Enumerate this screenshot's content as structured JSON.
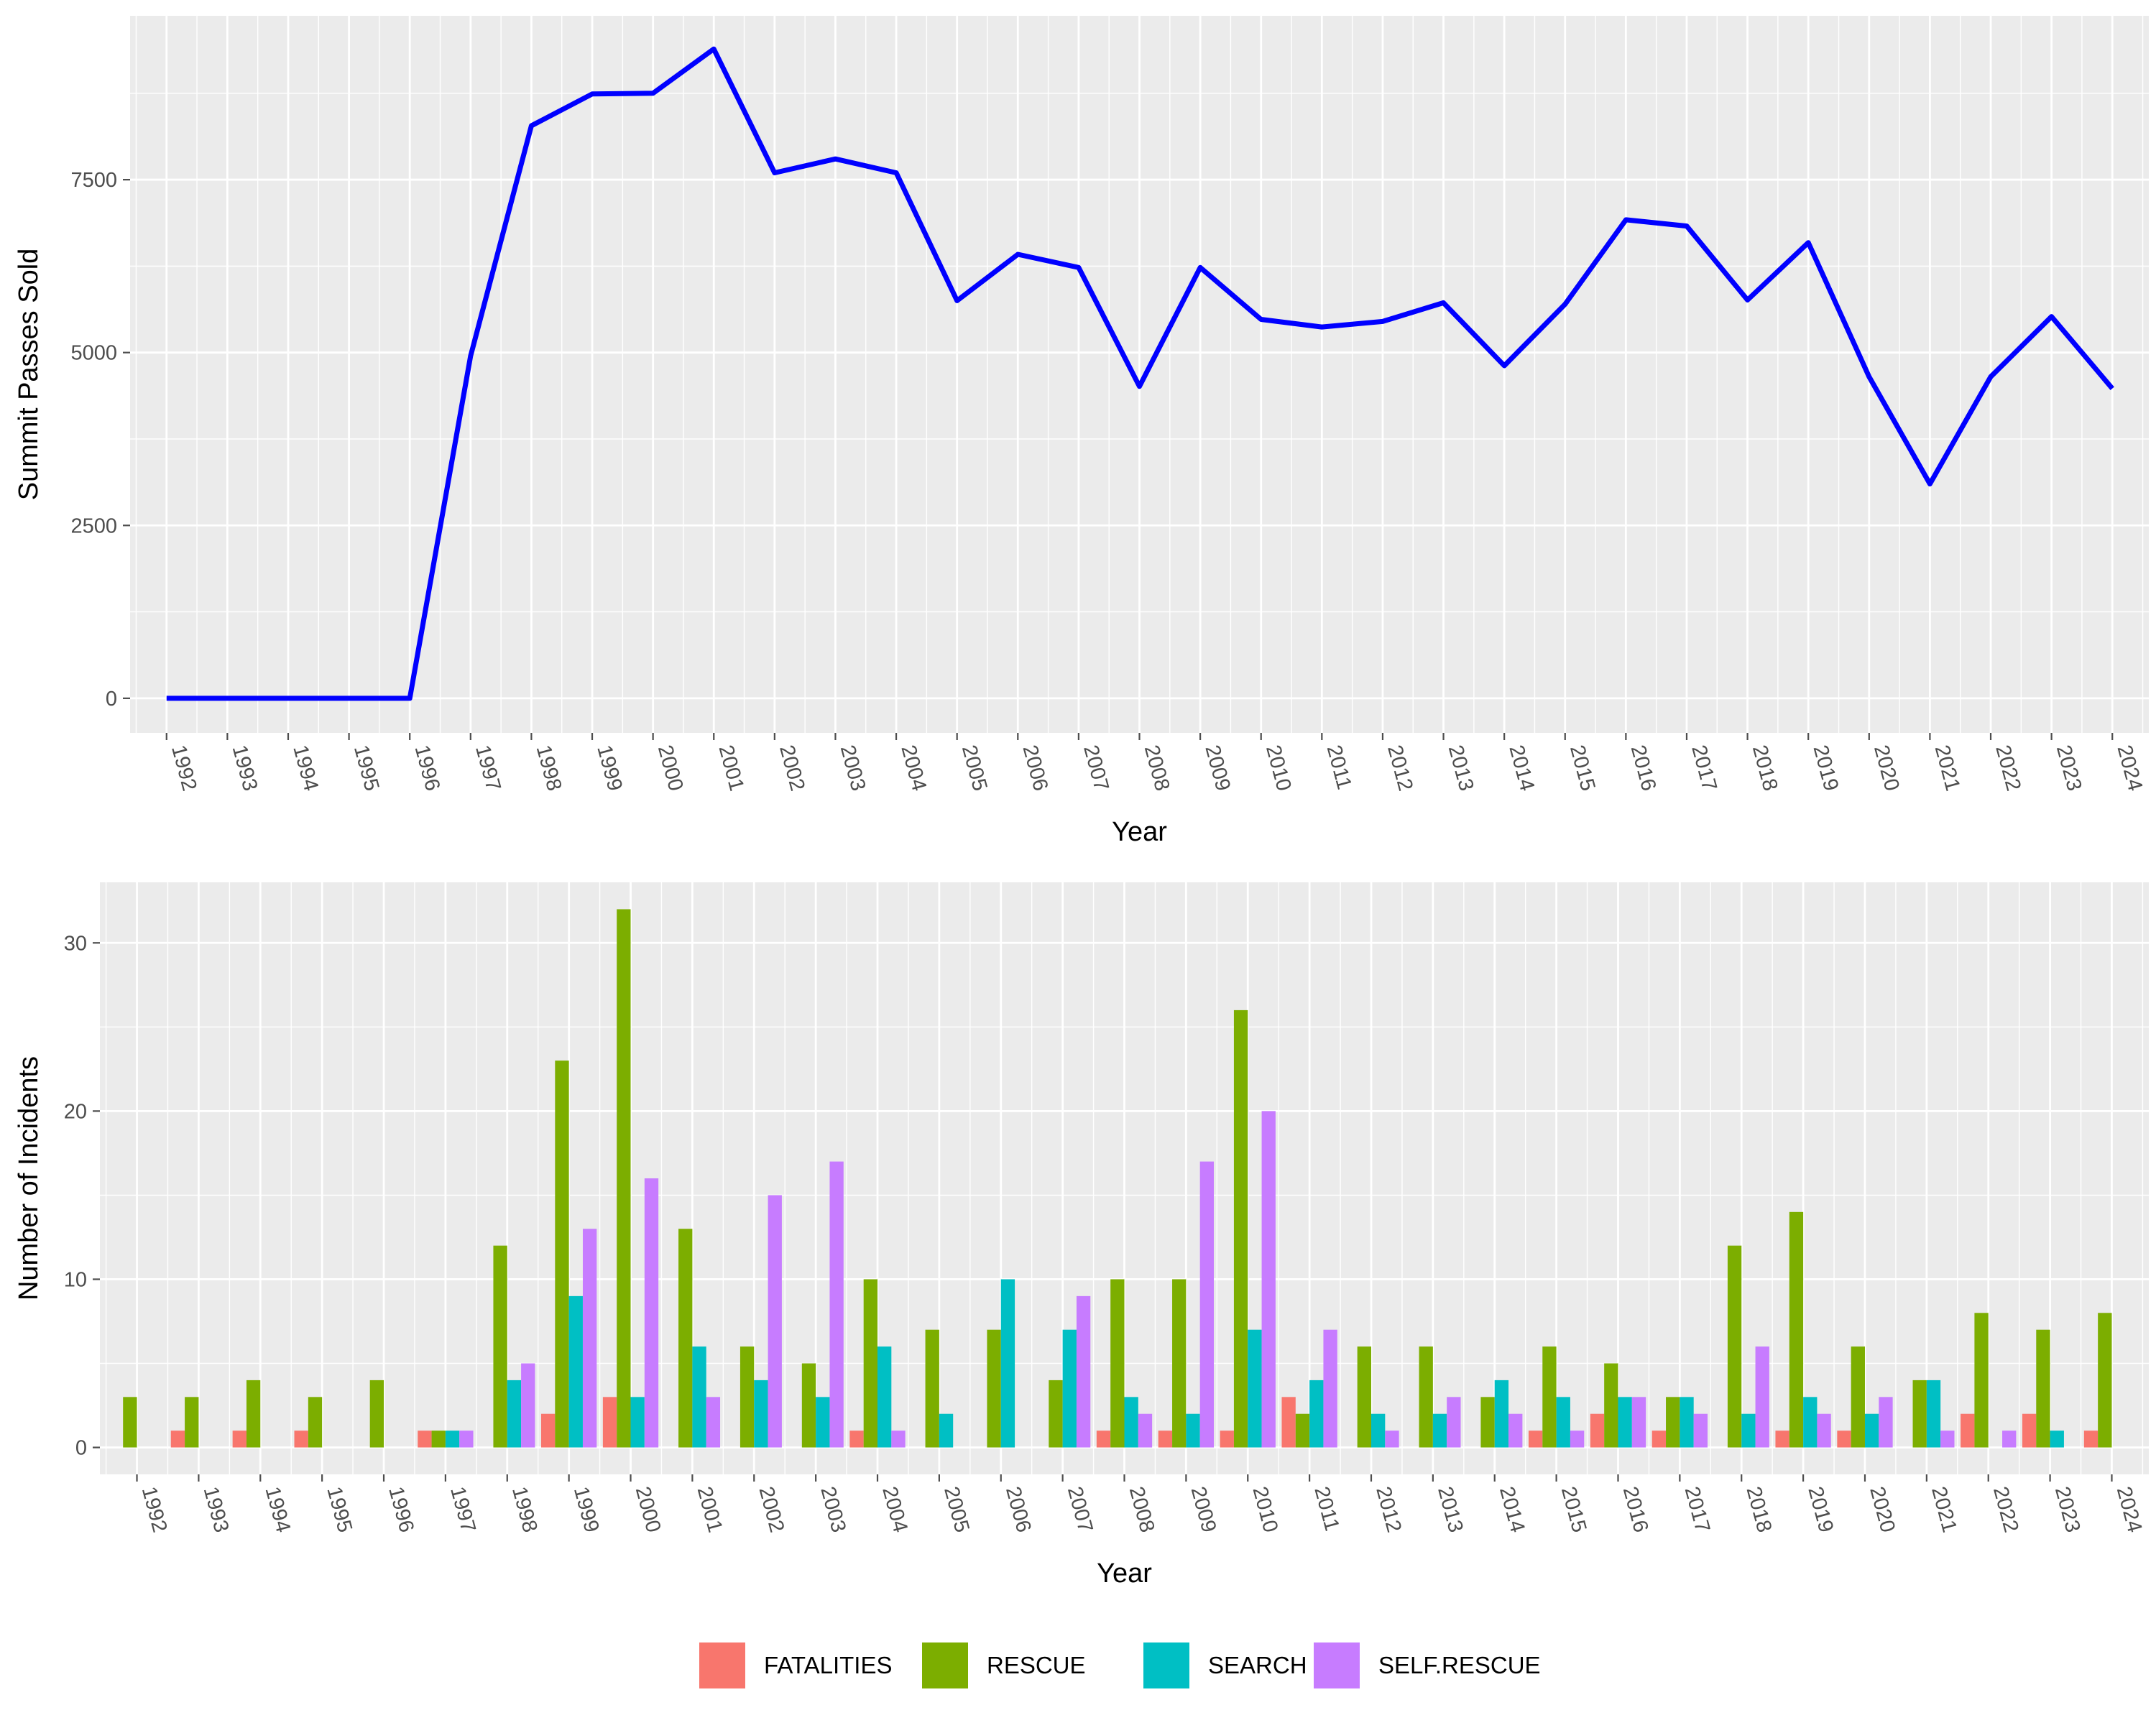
{
  "chart_data": [
    {
      "type": "line",
      "xlabel": "Year",
      "ylabel": "Summit Passes Sold",
      "x": [
        "1992",
        "1993",
        "1994",
        "1995",
        "1996",
        "1997",
        "1998",
        "1999",
        "2000",
        "2001",
        "2002",
        "2003",
        "2004",
        "2005",
        "2006",
        "2007",
        "2008",
        "2009",
        "2010",
        "2011",
        "2012",
        "2013",
        "2014",
        "2015",
        "2016",
        "2017",
        "2018",
        "2019",
        "2020",
        "2021",
        "2022",
        "2023",
        "2024"
      ],
      "series": [
        {
          "values": [
            0,
            0,
            0,
            0,
            0,
            4950,
            8280,
            8740,
            8750,
            9390,
            7600,
            7800,
            7600,
            5750,
            6420,
            6230,
            4510,
            6230,
            5480,
            5370,
            5450,
            5720,
            4810,
            5700,
            6920,
            6830,
            5760,
            6590,
            4650,
            3100,
            4650,
            5520,
            4480
          ],
          "color": "#0000ff"
        }
      ],
      "ylim": [
        -500,
        9870
      ],
      "yticks": [
        0,
        2500,
        5000,
        7500
      ],
      "ytick_labels": [
        "0",
        "2500",
        "5000",
        "7500"
      ],
      "grid": true
    },
    {
      "type": "bar",
      "xlabel": "Year",
      "ylabel": "Number of Incidents",
      "categories": [
        "1992",
        "1993",
        "1994",
        "1995",
        "1996",
        "1997",
        "1998",
        "1999",
        "2000",
        "2001",
        "2002",
        "2003",
        "2004",
        "2005",
        "2006",
        "2007",
        "2008",
        "2009",
        "2010",
        "2011",
        "2012",
        "2013",
        "2014",
        "2015",
        "2016",
        "2017",
        "2018",
        "2019",
        "2020",
        "2021",
        "2022",
        "2023",
        "2024"
      ],
      "series": [
        {
          "name": "FATALITIES",
          "color": "#F8766D",
          "values": [
            0,
            1,
            1,
            1,
            0,
            1,
            0,
            2,
            3,
            0,
            0,
            0,
            1,
            0,
            0,
            0,
            1,
            1,
            1,
            3,
            0,
            0,
            0,
            1,
            2,
            1,
            0,
            1,
            1,
            0,
            2,
            2,
            1
          ]
        },
        {
          "name": "RESCUE",
          "color": "#7CAE00",
          "values": [
            3,
            3,
            4,
            3,
            4,
            1,
            12,
            23,
            32,
            13,
            6,
            5,
            10,
            7,
            7,
            4,
            10,
            10,
            26,
            2,
            6,
            6,
            3,
            6,
            5,
            3,
            12,
            14,
            6,
            4,
            8,
            7,
            8
          ]
        },
        {
          "name": "SEARCH",
          "color": "#00BFC4",
          "values": [
            0,
            0,
            0,
            0,
            0,
            1,
            4,
            9,
            3,
            6,
            4,
            3,
            6,
            2,
            10,
            7,
            3,
            2,
            7,
            4,
            2,
            2,
            4,
            3,
            3,
            3,
            2,
            3,
            2,
            4,
            0,
            1,
            0
          ]
        },
        {
          "name": "SELF.RESCUE",
          "color": "#C77CFF",
          "values": [
            0,
            0,
            0,
            0,
            0,
            1,
            5,
            13,
            16,
            3,
            15,
            17,
            1,
            0,
            0,
            9,
            2,
            17,
            20,
            7,
            1,
            3,
            2,
            1,
            3,
            2,
            6,
            2,
            3,
            1,
            1,
            0,
            0
          ]
        }
      ],
      "ylim": [
        -1.6,
        33.6
      ],
      "yticks": [
        0,
        10,
        20,
        30
      ],
      "ytick_labels": [
        "0",
        "10",
        "20",
        "30"
      ],
      "legend_position": "bottom",
      "grid": true
    }
  ]
}
